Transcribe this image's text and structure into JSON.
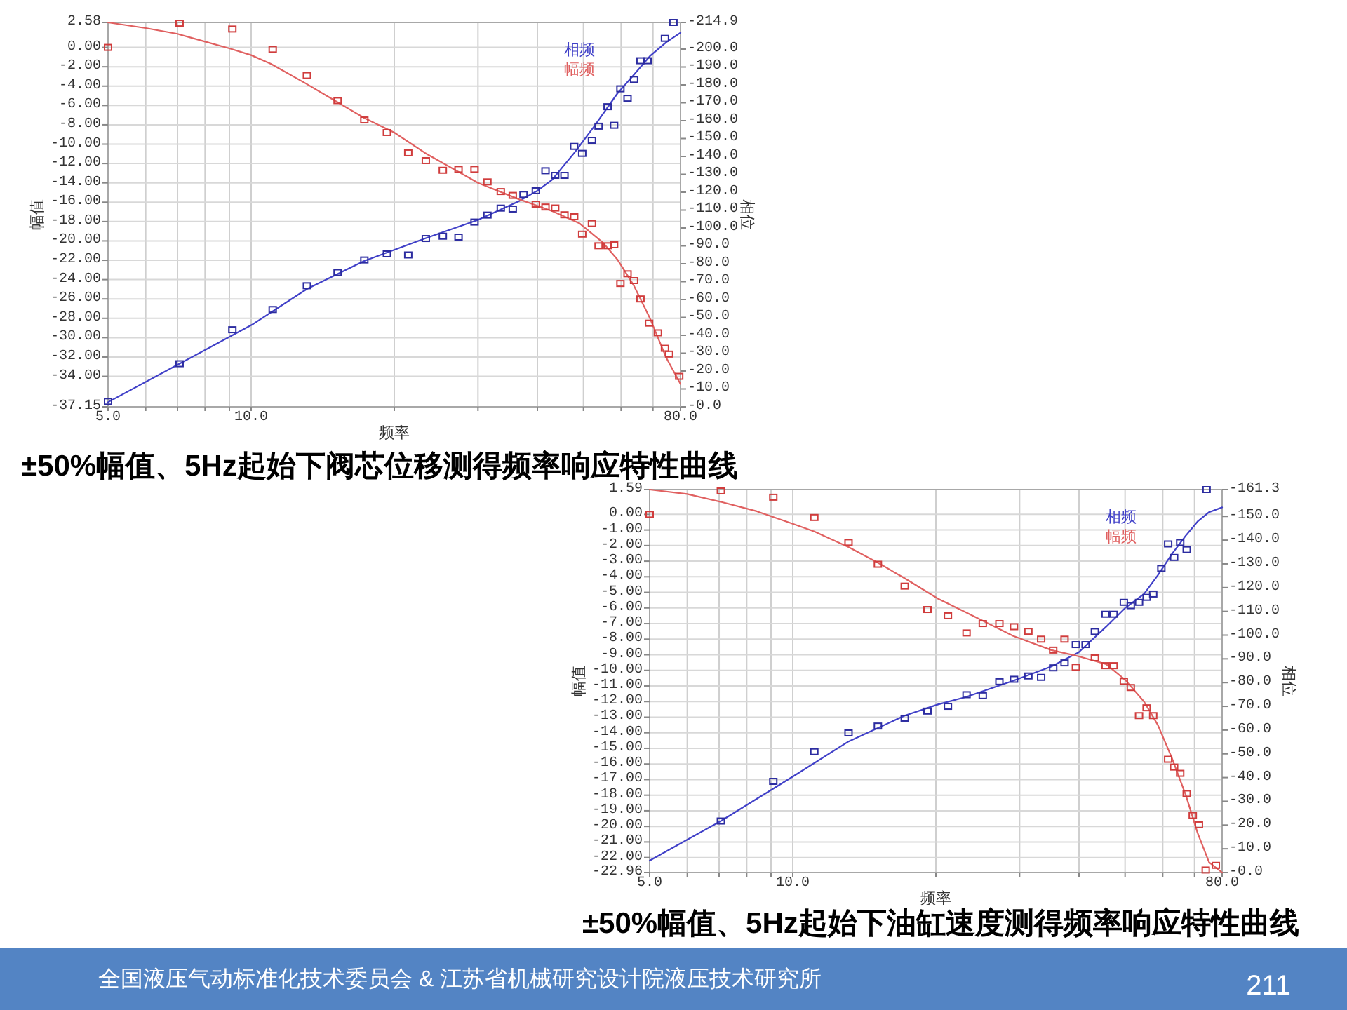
{
  "chart_data": [
    {
      "type": "line",
      "title": "±50%幅值、5Hz起始下阀芯位移测得频率响应特性曲线",
      "xlabel": "频率",
      "ylabel": "幅值",
      "y2label": "相位",
      "log": "x",
      "grid": true,
      "legend": "top right",
      "xlim": [
        5,
        80
      ],
      "xticks": [
        {
          "value": 5,
          "label": "5.0"
        },
        {
          "value": 6,
          "label": null
        },
        {
          "value": 7,
          "label": null
        },
        {
          "value": 8,
          "label": null
        },
        {
          "value": 9,
          "label": null
        },
        {
          "value": 10,
          "label": "10.0"
        },
        {
          "value": 20,
          "label": null
        },
        {
          "value": 30,
          "label": null
        },
        {
          "value": 40,
          "label": null
        },
        {
          "value": 50,
          "label": null
        },
        {
          "value": 60,
          "label": null
        },
        {
          "value": 70,
          "label": null
        },
        {
          "value": 80,
          "label": "80.0"
        }
      ],
      "ylim": [
        -37.15,
        2.58
      ],
      "yticks": [
        2.58,
        {
          "value": 0,
          "label": "0.00"
        },
        {
          "value": -2,
          "label": "-2.00"
        },
        {
          "value": -4,
          "label": "-4.00"
        },
        {
          "value": -6,
          "label": "-6.00"
        },
        {
          "value": -8,
          "label": "-8.00"
        },
        {
          "value": -10,
          "label": "-10.00"
        },
        {
          "value": -12,
          "label": "-12.00"
        },
        {
          "value": -14,
          "label": "-14.00"
        },
        {
          "value": -16,
          "label": "-16.00"
        },
        {
          "value": -18,
          "label": "-18.00"
        },
        {
          "value": -20,
          "label": "-20.00"
        },
        {
          "value": -22,
          "label": "-22.00"
        },
        {
          "value": -24,
          "label": "-24.00"
        },
        {
          "value": -26,
          "label": "-26.00"
        },
        {
          "value": -28,
          "label": "-28.00"
        },
        {
          "value": -30,
          "label": "-30.00"
        },
        {
          "value": -32,
          "label": "-32.00"
        },
        {
          "value": -34,
          "label": "-34.00"
        },
        -37.15
      ],
      "y2lim": [
        0,
        -214.9
      ],
      "y2ticks": [
        -214.9,
        {
          "value": -200,
          "label": "-200.0"
        },
        {
          "value": -190,
          "label": "-190.0"
        },
        {
          "value": -180,
          "label": "-180.0"
        },
        {
          "value": -170,
          "label": "-170.0"
        },
        {
          "value": -160,
          "label": "-160.0"
        },
        {
          "value": -150,
          "label": "-150.0"
        },
        {
          "value": -140,
          "label": "-140.0"
        },
        {
          "value": -130,
          "label": "-130.0"
        },
        {
          "value": -120,
          "label": "-120.0"
        },
        {
          "value": -110,
          "label": "-110.0"
        },
        {
          "value": -100,
          "label": "-100.0"
        },
        {
          "value": -90,
          "label": "-90.0"
        },
        {
          "value": -80,
          "label": "-80.0"
        },
        {
          "value": -70,
          "label": "-70.0"
        },
        {
          "value": -60,
          "label": "-60.0"
        },
        {
          "value": -50,
          "label": "-50.0"
        },
        {
          "value": -40,
          "label": "-40.0"
        },
        {
          "value": -30,
          "label": "-30.0"
        },
        {
          "value": -20,
          "label": "-20.0"
        },
        {
          "value": -10,
          "label": "-10.0"
        },
        {
          "value": 0,
          "label": "-0.0"
        }
      ],
      "series": [
        {
          "name": "相频",
          "axis": "y2",
          "color": "#4040c8",
          "x": [
            5,
            7.07,
            10.1,
            13.1,
            17.3,
            23.2,
            30,
            36.6,
            40,
            42.9,
            48,
            52.5,
            58.9,
            63.8,
            69,
            74.7,
            80
          ],
          "values": [
            -2.6,
            -24.1,
            -46.3,
            -65.9,
            -81.6,
            -94.1,
            -104.5,
            -115,
            -120.8,
            -126.8,
            -142.5,
            -156.3,
            -175.1,
            -185.6,
            -196.1,
            -203.9,
            -209.2
          ]
        },
        {
          "name": "幅频",
          "color": "#e06060",
          "x": [
            5,
            6,
            7,
            8,
            9,
            10,
            11,
            13,
            15,
            17.3,
            20,
            23.2,
            30,
            36.6,
            42.9,
            49.1,
            55,
            58.9,
            63.8,
            69,
            74.7,
            80
          ],
          "values": [
            2.58,
            2.0,
            1.4,
            0.6,
            -0.1,
            -0.8,
            -1.7,
            -3.7,
            -5.5,
            -7.3,
            -8.8,
            -10.9,
            -14.0,
            -15.7,
            -16.9,
            -18.2,
            -20.2,
            -21.9,
            -24.6,
            -28.0,
            -32.1,
            -34.8
          ]
        },
        {
          "type": "scatter",
          "axis": "y2",
          "marker": "square",
          "color": "#2c2ca0",
          "x": [
            5,
            7.07,
            9.13,
            11.1,
            13.1,
            15.2,
            17.3,
            19.3,
            21.4,
            23.3,
            25.3,
            27.3,
            29.5,
            31.4,
            33.5,
            35.5,
            37.4,
            39.7,
            41.6,
            43.6,
            45.6,
            47.8,
            49.7,
            52.1,
            53.8,
            56.2,
            58,
            59.8,
            61.9,
            63.9,
            65.9,
            68.2,
            74.2,
            77.3
          ],
          "values": [
            -3,
            -24.1,
            -43.1,
            -54.4,
            -67.7,
            -75.1,
            -82.1,
            -85.5,
            -84.9,
            -94.1,
            -95.4,
            -94.9,
            -103.3,
            -107.2,
            -111.1,
            -110.6,
            -118.7,
            -120.8,
            -132,
            -129.4,
            -129.4,
            -145.6,
            -141.7,
            -149,
            -156.9,
            -167.8,
            -157.4,
            -177.8,
            -172.5,
            -183,
            -193.5,
            -193.5,
            -206,
            -214.9
          ]
        },
        {
          "type": "scatter",
          "marker": "square",
          "color": "#d03c3c",
          "x": [
            5,
            7.07,
            9.13,
            11.1,
            13.1,
            15.2,
            17.3,
            19.3,
            21.4,
            23.3,
            25.3,
            27.3,
            29.5,
            31.4,
            33.5,
            35.5,
            39.7,
            41.6,
            43.6,
            45.6,
            47.8,
            49.7,
            52.1,
            53.8,
            56.2,
            58,
            59.8,
            61.9,
            63.9,
            65.9,
            68.7,
            71.7,
            74.2,
            75.7,
            79.5
          ],
          "values": [
            0,
            2.5,
            1.9,
            -0.2,
            -2.9,
            -5.5,
            -7.5,
            -8.8,
            -10.9,
            -11.7,
            -12.7,
            -12.6,
            -12.6,
            -13.9,
            -14.9,
            -15.3,
            -16.2,
            -16.5,
            -16.6,
            -17.3,
            -17.5,
            -19.3,
            -18.2,
            -20.5,
            -20.5,
            -20.4,
            -24.4,
            -23.4,
            -24.1,
            -26.0,
            -28.5,
            -29.5,
            -31.1,
            -31.7,
            -34.0
          ]
        }
      ]
    },
    {
      "type": "line",
      "title": "±50%幅值、5Hz起始下油缸速度测得频率响应特性曲线",
      "xlabel": "频率",
      "ylabel": "幅值",
      "y2label": "相位",
      "log": "x",
      "grid": true,
      "legend": "top right",
      "xlim": [
        5,
        80
      ],
      "xticks": [
        {
          "value": 5,
          "label": "5.0"
        },
        {
          "value": 6,
          "label": null
        },
        {
          "value": 7,
          "label": null
        },
        {
          "value": 8,
          "label": null
        },
        {
          "value": 9,
          "label": null
        },
        {
          "value": 10,
          "label": "10.0"
        },
        {
          "value": 20,
          "label": null
        },
        {
          "value": 30,
          "label": null
        },
        {
          "value": 40,
          "label": null
        },
        {
          "value": 50,
          "label": null
        },
        {
          "value": 60,
          "label": null
        },
        {
          "value": 70,
          "label": null
        },
        {
          "value": 80,
          "label": "80.0"
        }
      ],
      "ylim": [
        -22.96,
        1.59
      ],
      "yticks": [
        1.59,
        {
          "value": 0,
          "label": "0.00"
        },
        {
          "value": -1,
          "label": "-1.00"
        },
        {
          "value": -2,
          "label": "-2.00"
        },
        {
          "value": -3,
          "label": "-3.00"
        },
        {
          "value": -4,
          "label": "-4.00"
        },
        {
          "value": -5,
          "label": "-5.00"
        },
        {
          "value": -6,
          "label": "-6.00"
        },
        {
          "value": -7,
          "label": "-7.00"
        },
        {
          "value": -8,
          "label": "-8.00"
        },
        {
          "value": -9,
          "label": "-9.00"
        },
        {
          "value": -10,
          "label": "-10.00"
        },
        {
          "value": -11,
          "label": "-11.00"
        },
        {
          "value": -12,
          "label": "-12.00"
        },
        {
          "value": -13,
          "label": "-13.00"
        },
        {
          "value": -14,
          "label": "-14.00"
        },
        {
          "value": -15,
          "label": "-15.00"
        },
        {
          "value": -16,
          "label": "-16.00"
        },
        {
          "value": -17,
          "label": "-17.00"
        },
        {
          "value": -18,
          "label": "-18.00"
        },
        {
          "value": -19,
          "label": "-19.00"
        },
        {
          "value": -20,
          "label": "-20.00"
        },
        {
          "value": -21,
          "label": "-21.00"
        },
        {
          "value": -22,
          "label": "-22.00"
        },
        -22.96
      ],
      "y2lim": [
        0,
        -161.3
      ],
      "y2ticks": [
        -161.3,
        {
          "value": -150,
          "label": "-150.0"
        },
        {
          "value": -140,
          "label": "-140.0"
        },
        {
          "value": -130,
          "label": "-130.0"
        },
        {
          "value": -120,
          "label": "-120.0"
        },
        {
          "value": -110,
          "label": "-110.0"
        },
        {
          "value": -100,
          "label": "-100.0"
        },
        {
          "value": -90,
          "label": "-90.0"
        },
        {
          "value": -80,
          "label": "-80.0"
        },
        {
          "value": -70,
          "label": "-70.0"
        },
        {
          "value": -60,
          "label": "-60.0"
        },
        {
          "value": -50,
          "label": "-50.0"
        },
        {
          "value": -40,
          "label": "-40.0"
        },
        {
          "value": -30,
          "label": "-30.0"
        },
        {
          "value": -20,
          "label": "-20.0"
        },
        {
          "value": -10,
          "label": "-10.0"
        },
        {
          "value": 0,
          "label": "-0.0"
        }
      ],
      "series": [
        {
          "name": "相频",
          "axis": "y2",
          "color": "#4040c8",
          "x": [
            5,
            7.06,
            10,
            13.1,
            17.2,
            20.2,
            23.2,
            29.1,
            35,
            39.9,
            45.6,
            50,
            54.8,
            58.6,
            62.7,
            67.1,
            71,
            75.1,
            80
          ],
          "values": [
            -5,
            -21.7,
            -40.4,
            -55.2,
            -66.1,
            -70.8,
            -74,
            -80.8,
            -86.8,
            -92.7,
            -103.5,
            -111.4,
            -117.3,
            -125.2,
            -134.1,
            -141.9,
            -147.8,
            -151.8,
            -153.8
          ]
        },
        {
          "name": "幅频",
          "color": "#e06060",
          "x": [
            5,
            6,
            7.06,
            8.4,
            10,
            11.1,
            13.1,
            15.1,
            17.2,
            20.2,
            23.2,
            29.1,
            35,
            39.9,
            45.6,
            50,
            54.8,
            58.6,
            62.7,
            67.1,
            71,
            75.1,
            80
          ],
          "values": [
            1.59,
            1.3,
            0.8,
            0.2,
            -0.6,
            -1.1,
            -2.1,
            -3.1,
            -4.1,
            -5.4,
            -6.3,
            -7.8,
            -8.7,
            -9.1,
            -9.6,
            -10.6,
            -12.0,
            -13.5,
            -15.6,
            -18.0,
            -20.4,
            -22.3,
            -22.96
          ]
        },
        {
          "type": "scatter",
          "axis": "y2",
          "marker": "square",
          "color": "#2c2ca0",
          "x": [
            7.06,
            9.1,
            11.1,
            13.1,
            15.1,
            17.2,
            19.2,
            21.2,
            23.2,
            25.1,
            27.2,
            29.2,
            31.3,
            33.3,
            35.3,
            37.3,
            39.4,
            41.3,
            43.2,
            45.5,
            47.3,
            49.7,
            51.4,
            53.5,
            55.5,
            57.3,
            59.6,
            61.6,
            63.4,
            65.3,
            67.4,
            74.2
          ],
          "values": [
            -21.7,
            -38.4,
            -50.9,
            -58.8,
            -61.7,
            -65.0,
            -68.0,
            -70.0,
            -74.9,
            -74.5,
            -80.4,
            -81.4,
            -82.8,
            -82.2,
            -86.2,
            -88.3,
            -96.0,
            -96.0,
            -101.5,
            -108.8,
            -108.8,
            -113.8,
            -112.4,
            -113.8,
            -115.9,
            -117.3,
            -128.1,
            -138.4,
            -132.7,
            -139.0,
            -136.0,
            -161.3
          ]
        },
        {
          "type": "scatter",
          "marker": "square",
          "color": "#d03c3c",
          "x": [
            5,
            7.06,
            9.1,
            11.1,
            13.1,
            15.1,
            17.2,
            19.2,
            21.2,
            23.2,
            25.1,
            27.2,
            29.2,
            31.3,
            33.3,
            35.3,
            37.3,
            39.4,
            43.2,
            45.5,
            47.3,
            49.7,
            51.4,
            53.5,
            55.5,
            57.3,
            61.6,
            63.4,
            65.3,
            67.4,
            69.4,
            71.5,
            73.9,
            77.6
          ],
          "values": [
            0,
            1.5,
            1.1,
            -0.2,
            -1.8,
            -3.2,
            -4.6,
            -6.1,
            -6.5,
            -7.6,
            -7.0,
            -7.0,
            -7.2,
            -7.5,
            -8.0,
            -8.7,
            -8.0,
            -9.8,
            -9.2,
            -9.7,
            -9.7,
            -10.7,
            -11.1,
            -12.9,
            -12.4,
            -12.9,
            -15.7,
            -16.2,
            -16.6,
            -17.9,
            -19.3,
            -19.9,
            -22.8,
            -22.5
          ]
        }
      ],
      "annotations": [
        "全国液压气动标准化技术委员会 & 江苏省机械研究设计院液压技术研究所",
        "211"
      ]
    }
  ]
}
